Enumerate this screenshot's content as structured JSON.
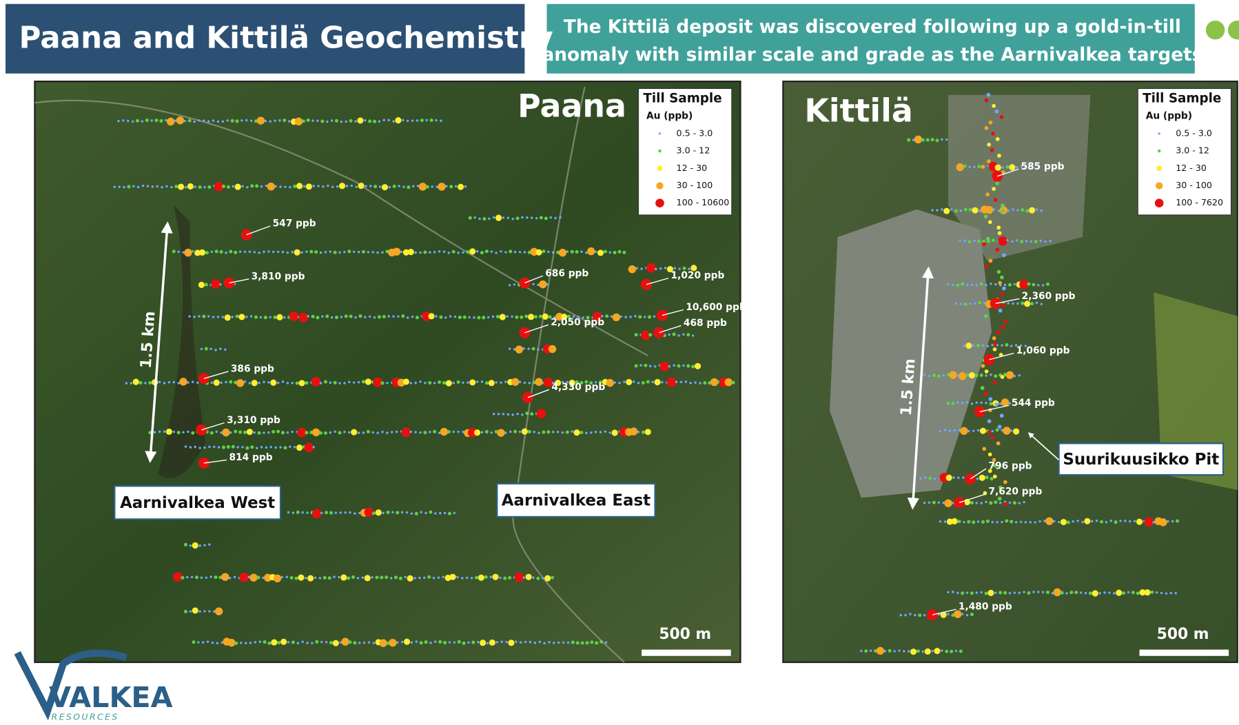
{
  "header": {
    "title": "Paana and Kittilä Geochemistry",
    "subtitle": [
      "The Kittilä deposit was discovered following up a gold-in-till",
      "anomaly with similar scale and grade as the Aarnivalkea targets"
    ]
  },
  "maps": [
    {
      "title": "Paana",
      "legend": {
        "title": "Till Sample",
        "unit": "Au (ppb)",
        "classes": [
          "0.5 - 3.0",
          "3.0 - 12",
          "12 - 30",
          "30 - 100",
          "100 - 10600"
        ]
      },
      "labels": [
        "547 ppb",
        "3,810 ppb",
        "686 ppb",
        "1,020 ppb",
        "10,600 ppb",
        "468 ppb",
        "2,050 ppb",
        "386 ppb",
        "4,330 ppb",
        "3,310 ppb",
        "814 ppb"
      ],
      "areas": [
        "Aarnivalkea West",
        "Aarnivalkea East"
      ],
      "distance": "1.5 km",
      "scale": "500 m"
    },
    {
      "title": "Kittilä",
      "legend": {
        "title": "Till Sample",
        "unit": "Au (ppb)",
        "classes": [
          "0.5 - 3.0",
          "3.0 - 12",
          "12 - 30",
          "30 - 100",
          "100 - 7620"
        ]
      },
      "labels": [
        "585 ppb",
        "2,360 ppb",
        "1,060 ppb",
        "544 ppb",
        "796 ppb",
        "7,620 ppb",
        "1,480 ppb"
      ],
      "areas": [
        "Suurikuusikko Pit"
      ],
      "distance": "1.5 km",
      "scale": "500 m"
    }
  ],
  "logo": {
    "name": "VALKEA",
    "tagline": "RESOURCES"
  }
}
